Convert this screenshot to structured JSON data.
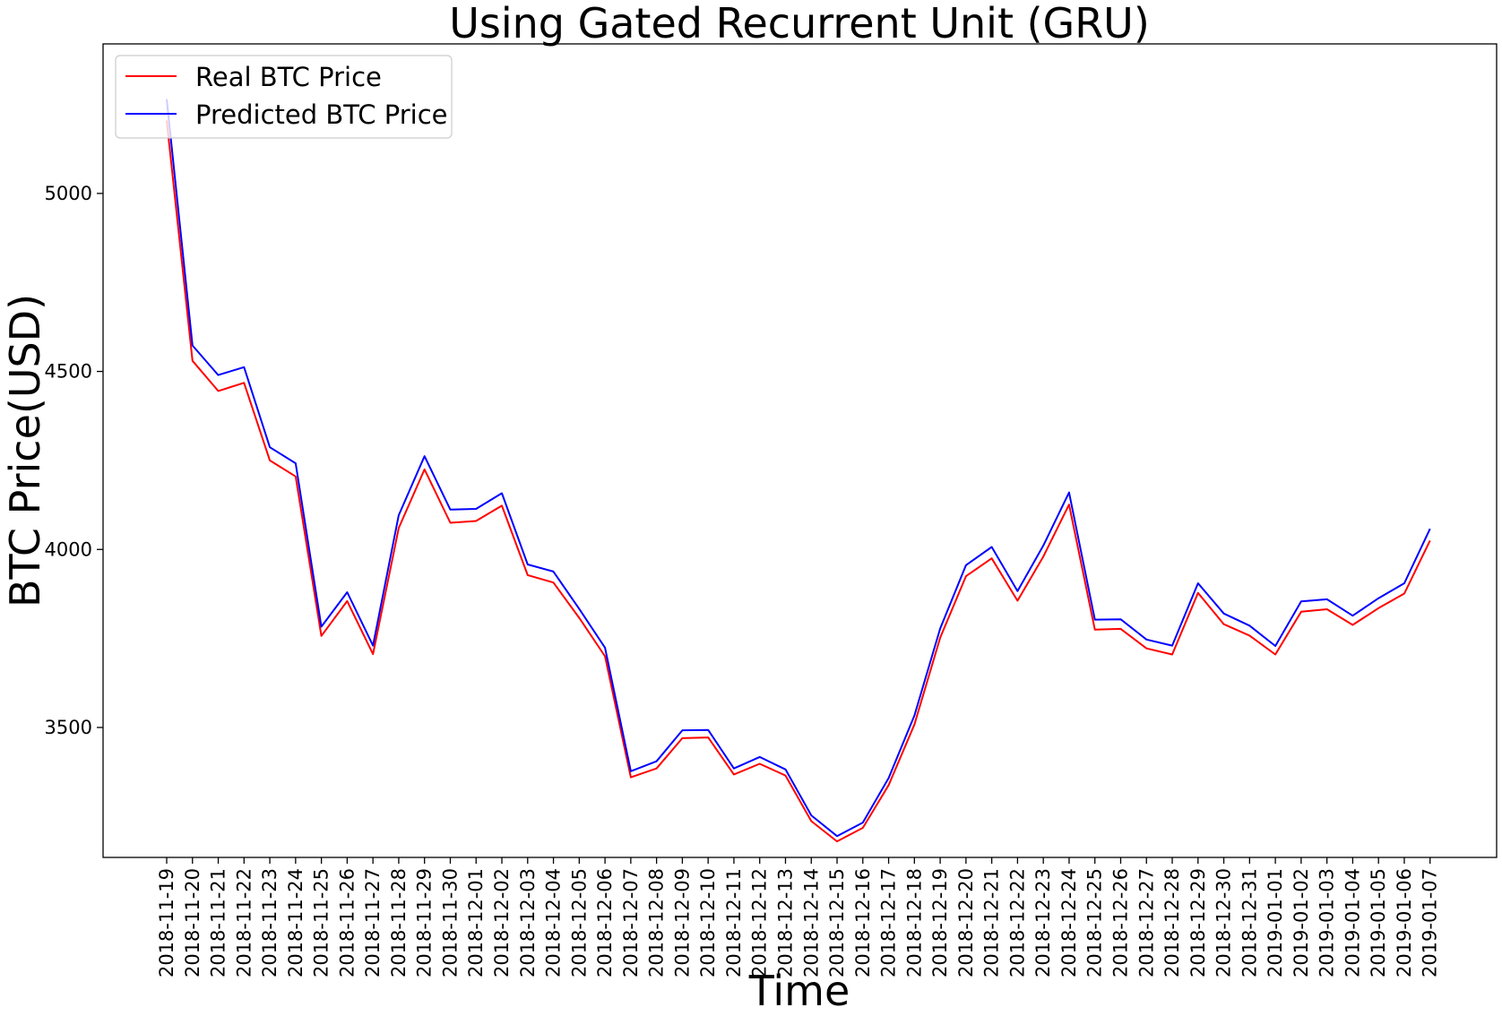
{
  "chart_data": {
    "type": "line",
    "title": "Using Gated Recurrent Unit (GRU)",
    "xlabel": "Time",
    "ylabel": "BTC Price(USD)",
    "yticks": [
      3500,
      4000,
      4500,
      5000
    ],
    "ylim": [
      3135,
      5420
    ],
    "grid": false,
    "legend_placement": "top-left",
    "categories": [
      "2018-11-19",
      "2018-11-20",
      "2018-11-21",
      "2018-11-22",
      "2018-11-23",
      "2018-11-24",
      "2018-11-25",
      "2018-11-26",
      "2018-11-27",
      "2018-11-28",
      "2018-11-29",
      "2018-11-30",
      "2018-12-01",
      "2018-12-02",
      "2018-12-03",
      "2018-12-04",
      "2018-12-05",
      "2018-12-06",
      "2018-12-07",
      "2018-12-08",
      "2018-12-09",
      "2018-12-10",
      "2018-12-11",
      "2018-12-12",
      "2018-12-13",
      "2018-12-14",
      "2018-12-15",
      "2018-12-16",
      "2018-12-17",
      "2018-12-18",
      "2018-12-19",
      "2018-12-20",
      "2018-12-21",
      "2018-12-22",
      "2018-12-23",
      "2018-12-24",
      "2018-12-25",
      "2018-12-26",
      "2018-12-27",
      "2018-12-28",
      "2018-12-29",
      "2018-12-30",
      "2018-12-31",
      "2019-01-01",
      "2019-01-02",
      "2019-01-03",
      "2019-01-04",
      "2019-01-05",
      "2019-01-06",
      "2019-01-07"
    ],
    "series": [
      {
        "name": "Real BTC Price",
        "color": "#ff0000",
        "values": [
          5205,
          4530,
          4445,
          4468,
          4250,
          4205,
          3757,
          3855,
          3706,
          4060,
          4225,
          4075,
          4080,
          4123,
          3928,
          3907,
          3808,
          3700,
          3360,
          3385,
          3470,
          3472,
          3368,
          3398,
          3365,
          3237,
          3180,
          3218,
          3338,
          3508,
          3752,
          3925,
          3975,
          3856,
          3980,
          4126,
          3775,
          3777,
          3722,
          3705,
          3878,
          3790,
          3758,
          3705,
          3825,
          3832,
          3788,
          3835,
          3876,
          4025
        ]
      },
      {
        "name": "Predicted BTC Price",
        "color": "#0000ff",
        "values": [
          5265,
          4573,
          4490,
          4512,
          4287,
          4242,
          3783,
          3880,
          3730,
          4096,
          4262,
          4112,
          4114,
          4158,
          3958,
          3938,
          3833,
          3724,
          3377,
          3405,
          3492,
          3493,
          3385,
          3417,
          3382,
          3253,
          3195,
          3233,
          3358,
          3533,
          3778,
          3956,
          4007,
          3883,
          4011,
          4160,
          3803,
          3804,
          3747,
          3730,
          3905,
          3820,
          3786,
          3729,
          3854,
          3860,
          3814,
          3863,
          3905,
          4058
        ]
      }
    ]
  }
}
